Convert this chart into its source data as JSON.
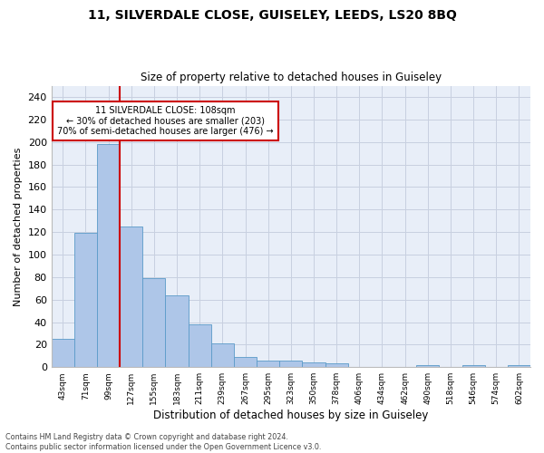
{
  "title": "11, SILVERDALE CLOSE, GUISELEY, LEEDS, LS20 8BQ",
  "subtitle": "Size of property relative to detached houses in Guiseley",
  "xlabel": "Distribution of detached houses by size in Guiseley",
  "ylabel": "Number of detached properties",
  "bin_labels": [
    "43sqm",
    "71sqm",
    "99sqm",
    "127sqm",
    "155sqm",
    "183sqm",
    "211sqm",
    "239sqm",
    "267sqm",
    "295sqm",
    "323sqm",
    "350sqm",
    "378sqm",
    "406sqm",
    "434sqm",
    "462sqm",
    "490sqm",
    "518sqm",
    "546sqm",
    "574sqm",
    "602sqm"
  ],
  "bar_heights": [
    25,
    119,
    198,
    125,
    79,
    64,
    38,
    21,
    9,
    6,
    6,
    4,
    3,
    0,
    0,
    0,
    2,
    0,
    2,
    0,
    2
  ],
  "bar_color": "#aec6e8",
  "bar_edge_color": "#5a9ac8",
  "vline_color": "#cc0000",
  "vline_bar_index": 2,
  "annotation_text": "11 SILVERDALE CLOSE: 108sqm\n← 30% of detached houses are smaller (203)\n70% of semi-detached houses are larger (476) →",
  "annotation_box_color": "#ffffff",
  "annotation_box_edge": "#cc0000",
  "ylim": [
    0,
    250
  ],
  "yticks": [
    0,
    20,
    40,
    60,
    80,
    100,
    120,
    140,
    160,
    180,
    200,
    220,
    240
  ],
  "grid_color": "#c8d0e0",
  "bg_color": "#e8eef8",
  "fig_bg_color": "#ffffff",
  "footer_line1": "Contains HM Land Registry data © Crown copyright and database right 2024.",
  "footer_line2": "Contains public sector information licensed under the Open Government Licence v3.0."
}
